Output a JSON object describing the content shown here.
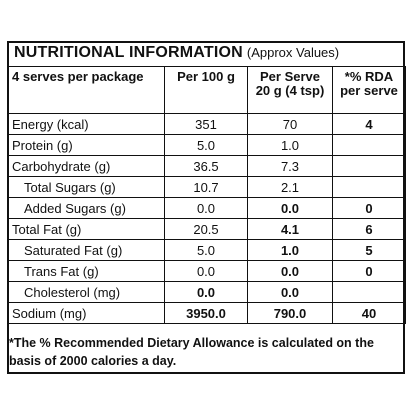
{
  "title": {
    "main": "NUTRITIONAL INFORMATION",
    "sub": "(Approx Values)"
  },
  "header": {
    "col1": "4 serves per package",
    "col2": "Per 100 g",
    "col3": "Per Serve 20 g (4 tsp)",
    "col4": "*% RDA per serve"
  },
  "rows": [
    {
      "name": "Energy (kcal)",
      "per100": "351",
      "perServe": "70",
      "rda": "4"
    },
    {
      "name": "Protein (g)",
      "per100": "5.0",
      "perServe": "1.0",
      "rda": ""
    },
    {
      "name": "Carbohydrate (g)",
      "per100": "36.5",
      "perServe": "7.3",
      "rda": ""
    },
    {
      "name": "Total Sugars (g)",
      "per100": "10.7",
      "perServe": "2.1",
      "rda": ""
    },
    {
      "name": "Added Sugars (g)",
      "per100": "0.0",
      "perServe": "0.0",
      "rda": "0"
    },
    {
      "name": "Total Fat (g)",
      "per100": "20.5",
      "perServe": "4.1",
      "rda": "6"
    },
    {
      "name": "Saturated Fat (g)",
      "per100": "5.0",
      "perServe": "1.0",
      "rda": "5"
    },
    {
      "name": "Trans Fat (g)",
      "per100": "0.0",
      "perServe": "0.0",
      "rda": "0"
    },
    {
      "name": "Cholesterol (mg)",
      "per100": "0.0",
      "perServe": "0.0",
      "rda": ""
    },
    {
      "name": "Sodium (mg)",
      "per100": "3950.0",
      "perServe": "790.0",
      "rda": "40"
    }
  ],
  "footnote": "*The % Recommended Dietary Allowance is calculated on the basis of 2000 calories a day."
}
